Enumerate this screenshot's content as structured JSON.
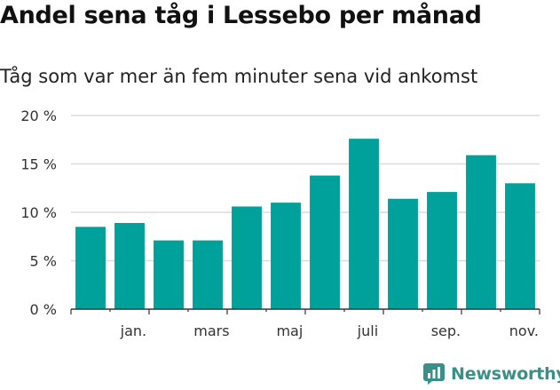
{
  "title": "Andel sena tåg i Lessebo per månad",
  "subtitle": "Tåg som var mer än fem minuter sena vid ankomst",
  "brand": {
    "name": "Newsworthy",
    "icon": "newsworthy-logo-icon",
    "color": "#3a8f88"
  },
  "chart_data": {
    "type": "bar",
    "title": "Andel sena tåg i Lessebo per månad",
    "subtitle": "Tåg som var mer än fem minuter sena vid ankomst",
    "xlabel": "",
    "ylabel": "",
    "ylim": [
      0,
      20
    ],
    "yticks": [
      0,
      5,
      10,
      15,
      20
    ],
    "ytick_labels": [
      "0 %",
      "5 %",
      "10 %",
      "15 %",
      "20 %"
    ],
    "xtick_labels": [
      "jan.",
      "mars",
      "maj",
      "juli",
      "sep.",
      "nov."
    ],
    "grid": true,
    "bar_color": "#00a19a",
    "values": [
      8.5,
      8.9,
      7.1,
      7.1,
      10.6,
      11.0,
      13.8,
      17.6,
      11.4,
      12.1,
      15.9,
      13.0
    ]
  }
}
